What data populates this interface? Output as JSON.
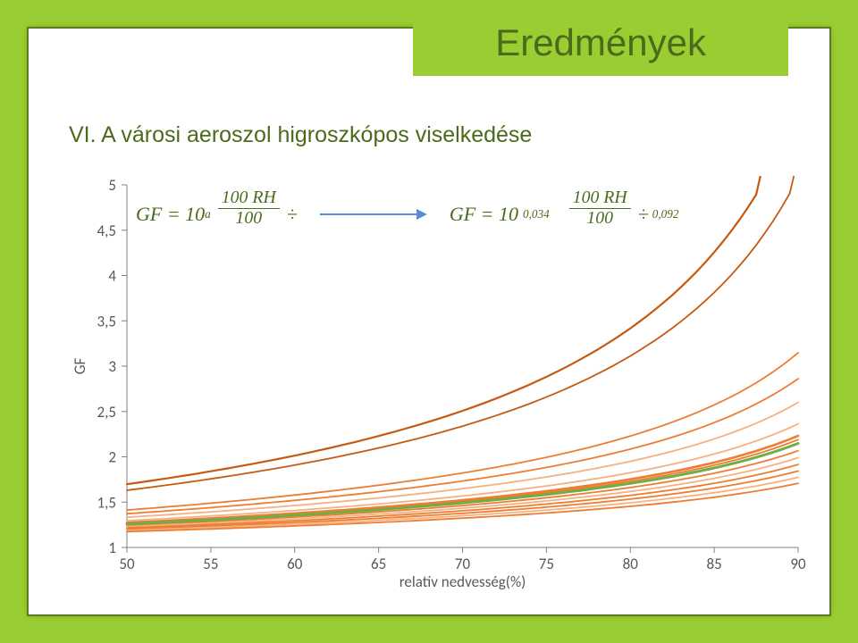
{
  "title": "Eredmények",
  "subtitle": "VI. A városi aeroszol higroszkópos viselkedése",
  "formula": {
    "lhs_prefix": "GF = 10",
    "lhs_exp": "a",
    "lhs_frac_num": "100   RH",
    "lhs_frac_den": "100",
    "rhs_prefix": "GF = 10",
    "rhs_exp": "0,034",
    "rhs_frac_num": "100   RH",
    "rhs_frac_den": "100",
    "rhs_exp2": "0,092"
  },
  "chart": {
    "type": "line",
    "xlabel": "relatív nedvesség(%)",
    "ylabel": "GF",
    "xlim": [
      50,
      90
    ],
    "ylim": [
      1,
      5
    ],
    "xticks": [
      50,
      55,
      60,
      65,
      70,
      75,
      80,
      85,
      90
    ],
    "yticks": [
      1,
      1.5,
      2,
      2.5,
      3,
      3.5,
      4,
      4.5,
      5
    ],
    "ytick_labels": [
      "1",
      "1,5",
      "2",
      "2,5",
      "3",
      "3,5",
      "4",
      "4,5",
      "5"
    ],
    "axis_color": "#808080",
    "tick_color": "#595959",
    "tick_fontsize": 17,
    "label_fontsize": 17,
    "background_color": "#ffffff",
    "line_width_thin": 1.8,
    "line_width_bold": 3.0,
    "series": [
      {
        "a": 0.092,
        "color": "#c55a11",
        "width": 2.2
      },
      {
        "a": 0.085,
        "color": "#c55a11",
        "width": 1.8
      },
      {
        "a": 0.06,
        "color": "#ed7d31",
        "width": 1.8
      },
      {
        "a": 0.055,
        "color": "#ed7d31",
        "width": 1.8
      },
      {
        "a": 0.05,
        "color": "#f4b183",
        "width": 1.8
      },
      {
        "a": 0.045,
        "color": "#f4b183",
        "width": 1.8
      },
      {
        "a": 0.042,
        "color": "#ed7d31",
        "width": 2.6
      },
      {
        "a": 0.04,
        "color": "#70ad47",
        "width": 3.0
      },
      {
        "a": 0.041,
        "color": "#ed7d31",
        "width": 1.8
      },
      {
        "a": 0.038,
        "color": "#ed7d31",
        "width": 1.8
      },
      {
        "a": 0.036,
        "color": "#f4b183",
        "width": 1.8
      },
      {
        "a": 0.034,
        "color": "#ed7d31",
        "width": 1.8
      },
      {
        "a": 0.032,
        "color": "#ed7d31",
        "width": 1.8
      },
      {
        "a": 0.03,
        "color": "#f4b183",
        "width": 1.8
      },
      {
        "a": 0.028,
        "color": "#ed7d31",
        "width": 1.8
      }
    ]
  },
  "colors": {
    "page_bg": "#9acd32",
    "frame_border": "#5f7b1f",
    "text_green": "#4b6b1a",
    "arrow": "#558ed5"
  }
}
